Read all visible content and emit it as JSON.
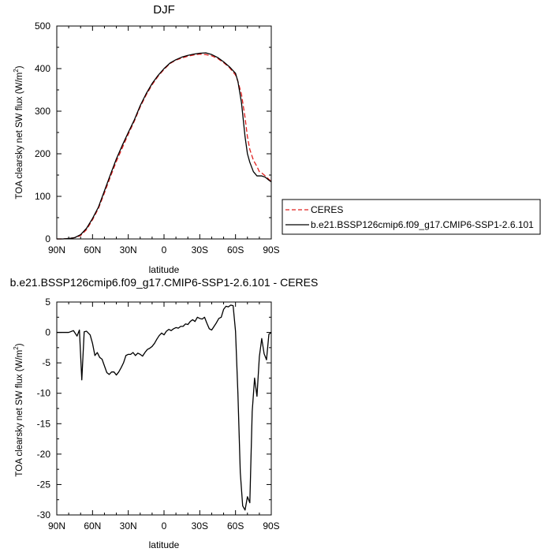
{
  "chart_data": [
    {
      "type": "line",
      "title": "DJF",
      "xlabel": "latitude",
      "ylabel_main": "TOA clearsky net SW flux (W/m",
      "ylabel_sup": "2",
      "ylabel_tail": ")",
      "xlim": [
        90,
        -90
      ],
      "ylim": [
        0,
        500
      ],
      "x_ticks": [
        90,
        60,
        30,
        0,
        -30,
        -60,
        -90
      ],
      "x_tick_labels": [
        "90N",
        "60N",
        "30N",
        "0",
        "30S",
        "60S",
        "90S"
      ],
      "y_ticks": [
        0,
        100,
        200,
        300,
        400,
        500
      ],
      "y_tick_labels": [
        "0",
        "100",
        "200",
        "300",
        "400",
        "500"
      ],
      "legend_position": "right",
      "series": [
        {
          "name": "CERES",
          "color": "#e0201f",
          "dash": true,
          "x": [
            90,
            85,
            80,
            75,
            70,
            65,
            60,
            55,
            50,
            45,
            40,
            35,
            30,
            25,
            20,
            15,
            10,
            5,
            0,
            -5,
            -10,
            -15,
            -20,
            -25,
            -30,
            -35,
            -40,
            -45,
            -50,
            -55,
            -60,
            -62,
            -65,
            -68,
            -70,
            -72,
            -75,
            -78,
            -80,
            -82,
            -85,
            -88,
            -90
          ],
          "y": [
            0,
            0,
            1,
            3,
            8,
            22,
            45,
            72,
            108,
            146,
            182,
            214,
            246,
            276,
            310,
            338,
            362,
            382,
            398,
            412,
            420,
            425,
            429,
            432,
            434,
            433,
            430,
            424,
            414,
            402,
            385,
            370,
            340,
            285,
            240,
            210,
            185,
            170,
            158,
            155,
            148,
            140,
            135
          ]
        },
        {
          "name": "b.e21.BSSP126cmip6.f09_g17.CMIP6-SSP1-2.6.101",
          "color": "#000000",
          "dash": false,
          "x": [
            90,
            85,
            80,
            75,
            70,
            65,
            60,
            55,
            50,
            45,
            40,
            35,
            30,
            25,
            20,
            15,
            10,
            5,
            0,
            -5,
            -10,
            -15,
            -20,
            -25,
            -30,
            -35,
            -40,
            -45,
            -50,
            -55,
            -60,
            -62,
            -65,
            -68,
            -70,
            -72,
            -75,
            -78,
            -80,
            -82,
            -85,
            -88,
            -90
          ],
          "y": [
            0,
            0,
            1,
            3,
            10,
            25,
            48,
            75,
            113,
            151,
            188,
            220,
            250,
            279,
            313,
            341,
            365,
            384,
            400,
            413,
            421,
            427,
            431,
            434,
            436,
            437,
            433,
            426,
            416,
            404,
            389,
            370,
            320,
            240,
            200,
            180,
            158,
            148,
            148,
            148,
            145,
            138,
            134
          ]
        }
      ]
    },
    {
      "type": "line",
      "title": "b.e21.BSSP126cmip6.f09_g17.CMIP6-SSP1-2.6.101 - CERES",
      "xlabel": "latitude",
      "ylabel_main": "TOA clearsky net SW flux (W/m",
      "ylabel_sup": "2",
      "ylabel_tail": ")",
      "xlim": [
        90,
        -90
      ],
      "ylim": [
        -30,
        5
      ],
      "x_ticks": [
        90,
        60,
        30,
        0,
        -30,
        -60,
        -90
      ],
      "x_tick_labels": [
        "90N",
        "60N",
        "30N",
        "0",
        "30S",
        "60S",
        "90S"
      ],
      "y_ticks": [
        5,
        0,
        -5,
        -10,
        -15,
        -20,
        -25,
        -30
      ],
      "y_tick_labels": [
        "5",
        "0",
        "-5",
        "-10",
        "-15",
        "-20",
        "-25",
        "-30"
      ],
      "series": [
        {
          "name": "",
          "color": "#000000",
          "dash": false,
          "x": [
            90,
            85,
            80,
            76,
            73,
            71,
            69,
            67,
            65,
            62,
            60,
            58,
            56,
            54,
            52,
            50,
            48,
            46,
            44,
            42,
            40,
            38,
            36,
            34,
            32,
            30,
            28,
            26,
            24,
            22,
            20,
            18,
            16,
            14,
            12,
            10,
            8,
            6,
            4,
            2,
            0,
            -2,
            -4,
            -6,
            -8,
            -10,
            -12,
            -14,
            -16,
            -18,
            -20,
            -22,
            -24,
            -26,
            -28,
            -30,
            -32,
            -34,
            -36,
            -38,
            -40,
            -42,
            -44,
            -46,
            -48,
            -50,
            -52,
            -54,
            -56,
            -58,
            -60,
            -62,
            -64,
            -66,
            -68,
            -70,
            -72,
            -74,
            -76,
            -78,
            -80,
            -82,
            -84,
            -86,
            -88,
            -90
          ],
          "y": [
            0,
            0,
            0,
            0.3,
            -0.6,
            0.4,
            -7.8,
            0.1,
            0.2,
            -0.4,
            -1.8,
            -3.8,
            -3.3,
            -4.1,
            -4.4,
            -5.5,
            -6.6,
            -6.9,
            -6.5,
            -6.5,
            -7.0,
            -6.5,
            -5.8,
            -5.0,
            -3.8,
            -3.6,
            -3.6,
            -3.3,
            -3.8,
            -3.4,
            -3.6,
            -3.9,
            -3.3,
            -2.8,
            -2.6,
            -2.3,
            -1.8,
            -1.1,
            -0.5,
            -0.1,
            -0.4,
            0.2,
            0.5,
            0.3,
            0.6,
            0.8,
            0.7,
            1.0,
            1.0,
            1.4,
            1.3,
            1.8,
            2.1,
            1.8,
            2.5,
            2.3,
            2.2,
            2.5,
            1.5,
            0.6,
            0.4,
            1.0,
            1.6,
            2.3,
            2.5,
            3.8,
            4.3,
            4.2,
            4.5,
            4.4,
            0.2,
            -10.0,
            -23.0,
            -28.5,
            -29.2,
            -27.0,
            -28.0,
            -13.0,
            -7.5,
            -10.5,
            -4.0,
            -1.0,
            -3.5,
            -4.5,
            -0.3,
            0.0
          ]
        }
      ]
    }
  ]
}
